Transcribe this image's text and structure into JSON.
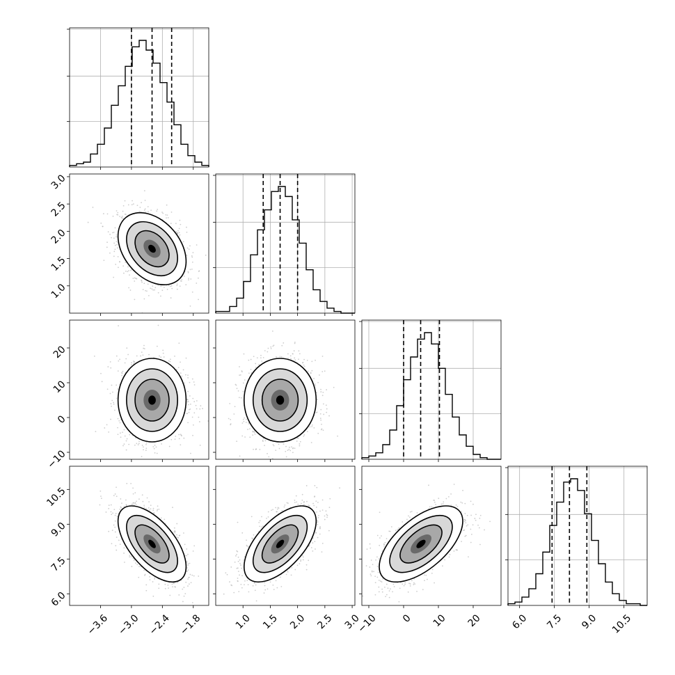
{
  "chart_data": {
    "type": "corner",
    "parameters": 4,
    "hist_grid": true,
    "ranges": [
      [
        -4.2,
        -1.5
      ],
      [
        0.5,
        3.05
      ],
      [
        -12,
        28
      ],
      [
        5.5,
        11.5
      ]
    ],
    "ticks": [
      [
        "−3.6",
        "−3.0",
        "−2.4",
        "−1.8"
      ],
      [
        "1.0",
        "1.5",
        "2.0",
        "2.5",
        "3.0"
      ],
      [
        "−10",
        "0",
        "10",
        "20"
      ],
      [
        "6.0",
        "7.5",
        "9.0",
        "10.5"
      ]
    ],
    "tick_values": [
      [
        -3.6,
        -3.0,
        -2.4,
        -1.8
      ],
      [
        1.0,
        1.5,
        2.0,
        2.5,
        3.0
      ],
      [
        -10,
        0,
        10,
        20
      ],
      [
        6.0,
        7.5,
        9.0,
        10.5
      ]
    ],
    "hist_tick_fractions": [
      0.33,
      0.66,
      1.0
    ],
    "histograms": [
      {
        "edges_start": -4.2,
        "bin_width": 0.135,
        "counts": [
          1,
          2,
          3,
          8,
          14,
          24,
          38,
          50,
          62,
          74,
          78,
          72,
          64,
          52,
          40,
          26,
          14,
          7,
          3,
          1
        ],
        "quantiles": [
          -3.0,
          -2.6,
          -2.22
        ]
      },
      {
        "edges_start": 0.5,
        "bin_width": 0.1275,
        "counts": [
          1,
          1,
          4,
          9,
          19,
          35,
          50,
          62,
          73,
          76,
          70,
          56,
          42,
          26,
          14,
          7,
          3,
          1,
          0,
          0
        ],
        "quantiles": [
          1.37,
          1.68,
          2.0
        ]
      },
      {
        "edges_start": -12,
        "bin_width": 2.0,
        "counts": [
          1,
          2,
          4,
          9,
          18,
          33,
          49,
          63,
          74,
          78,
          71,
          56,
          40,
          26,
          15,
          8,
          3,
          1,
          0,
          0
        ],
        "quantiles": [
          0.0,
          4.9,
          10.3
        ]
      },
      {
        "edges_start": 5.5,
        "bin_width": 0.3,
        "counts": [
          1,
          2,
          5,
          10,
          19,
          32,
          48,
          62,
          74,
          76,
          69,
          55,
          39,
          25,
          14,
          7,
          3,
          1,
          1,
          0
        ],
        "quantiles": [
          7.4,
          8.15,
          8.9
        ]
      }
    ],
    "pairs": [
      {
        "i": 1,
        "j": 0,
        "mean": [
          -2.6,
          1.68
        ],
        "sd": [
          0.33,
          0.33
        ],
        "rho": -0.35
      },
      {
        "i": 2,
        "j": 0,
        "mean": [
          -2.6,
          5.0
        ],
        "sd": [
          0.33,
          6.0
        ],
        "rho": 0.0
      },
      {
        "i": 2,
        "j": 1,
        "mean": [
          1.68,
          5.0
        ],
        "sd": [
          0.33,
          6.0
        ],
        "rho": 0.0
      },
      {
        "i": 3,
        "j": 0,
        "mean": [
          -2.6,
          8.15
        ],
        "sd": [
          0.33,
          0.82
        ],
        "rho": -0.6
      },
      {
        "i": 3,
        "j": 1,
        "mean": [
          1.68,
          8.15
        ],
        "sd": [
          0.33,
          0.82
        ],
        "rho": 0.6
      },
      {
        "i": 3,
        "j": 2,
        "mean": [
          5.0,
          8.15
        ],
        "sd": [
          6.0,
          0.82
        ],
        "rho": 0.6
      }
    ],
    "contour_levels_sigma": [
      0.5,
      1.0,
      1.5,
      2.0
    ],
    "colors": {
      "ink": "#000000",
      "points": "#b8b8b8",
      "grid": "#b0b0b0"
    }
  }
}
